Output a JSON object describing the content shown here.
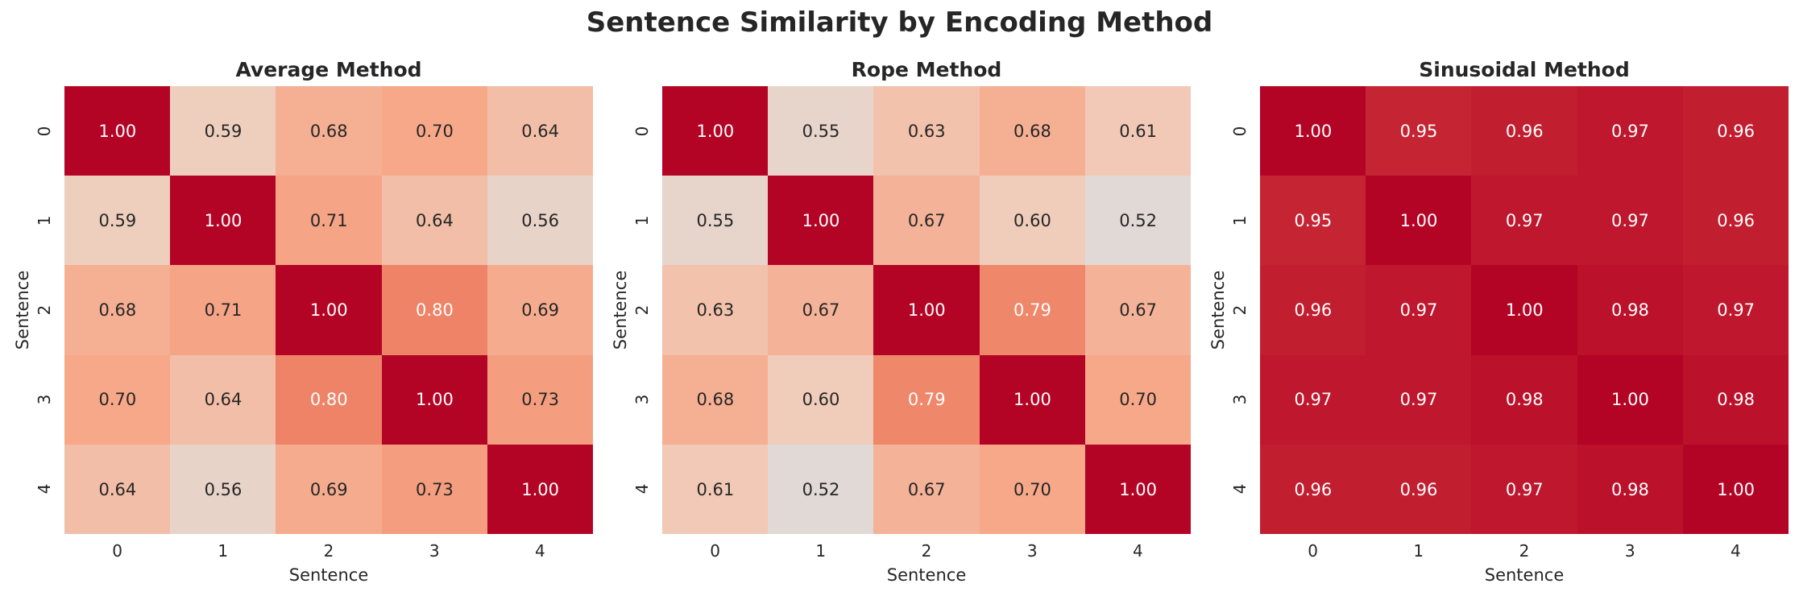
{
  "title": "Sentence Similarity by Encoding Method",
  "chart_data": [
    {
      "type": "heatmap",
      "title": "Average Method",
      "xlabel": "Sentence",
      "ylabel": "Sentence",
      "x_ticks": [
        "0",
        "1",
        "2",
        "3",
        "4"
      ],
      "y_ticks": [
        "0",
        "1",
        "2",
        "3",
        "4"
      ],
      "colormap": "coolwarm",
      "values": [
        [
          1.0,
          0.59,
          0.68,
          0.7,
          0.64
        ],
        [
          0.59,
          1.0,
          0.71,
          0.64,
          0.56
        ],
        [
          0.68,
          0.71,
          1.0,
          0.8,
          0.69
        ],
        [
          0.7,
          0.64,
          0.8,
          1.0,
          0.73
        ],
        [
          0.64,
          0.56,
          0.69,
          0.73,
          1.0
        ]
      ]
    },
    {
      "type": "heatmap",
      "title": "Rope Method",
      "xlabel": "Sentence",
      "ylabel": "Sentence",
      "x_ticks": [
        "0",
        "1",
        "2",
        "3",
        "4"
      ],
      "y_ticks": [
        "0",
        "1",
        "2",
        "3",
        "4"
      ],
      "colormap": "coolwarm",
      "values": [
        [
          1.0,
          0.55,
          0.63,
          0.68,
          0.61
        ],
        [
          0.55,
          1.0,
          0.67,
          0.6,
          0.52
        ],
        [
          0.63,
          0.67,
          1.0,
          0.79,
          0.67
        ],
        [
          0.68,
          0.6,
          0.79,
          1.0,
          0.7
        ],
        [
          0.61,
          0.52,
          0.67,
          0.7,
          1.0
        ]
      ]
    },
    {
      "type": "heatmap",
      "title": "Sinusoidal Method",
      "xlabel": "Sentence",
      "ylabel": "Sentence",
      "x_ticks": [
        "0",
        "1",
        "2",
        "3",
        "4"
      ],
      "y_ticks": [
        "0",
        "1",
        "2",
        "3",
        "4"
      ],
      "colormap": "coolwarm",
      "values": [
        [
          1.0,
          0.95,
          0.96,
          0.97,
          0.96
        ],
        [
          0.95,
          1.0,
          0.97,
          0.97,
          0.96
        ],
        [
          0.96,
          0.97,
          1.0,
          0.98,
          0.97
        ],
        [
          0.97,
          0.97,
          0.98,
          1.0,
          0.98
        ],
        [
          0.96,
          0.96,
          0.97,
          0.98,
          1.0
        ]
      ]
    }
  ]
}
